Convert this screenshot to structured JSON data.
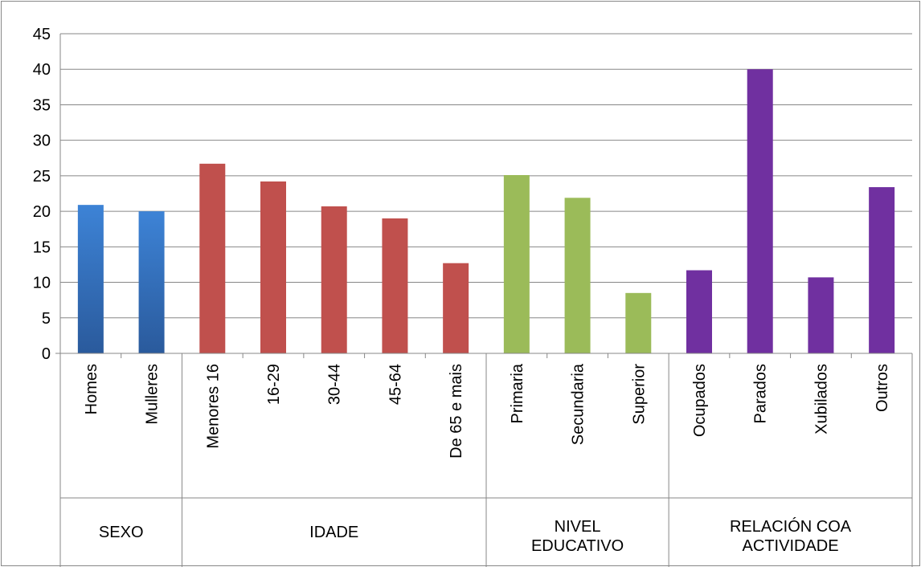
{
  "chart_data": {
    "type": "bar",
    "title": "",
    "xlabel": "",
    "ylabel": "",
    "ylim": [
      0,
      45
    ],
    "y_ticks": [
      "0",
      "5",
      "10",
      "15",
      "20",
      "25",
      "30",
      "35",
      "40",
      "45"
    ],
    "grid": true,
    "legend": "none",
    "groups": [
      {
        "label": "SEXO",
        "color": "#3a78c6",
        "categories": [
          "Homes",
          "Mulleres"
        ],
        "values": [
          20.9,
          20.0
        ]
      },
      {
        "label": "IDADE",
        "color": "#c0504d",
        "categories": [
          "Menores 16",
          "16-29",
          "30-44",
          "45-64",
          "De 65 e mais"
        ],
        "values": [
          26.7,
          24.2,
          20.7,
          19.0,
          12.7
        ]
      },
      {
        "label": "NIVEL EDUCATIVO",
        "label_lines": [
          "NIVEL",
          "EDUCATIVO"
        ],
        "color": "#9bbb59",
        "categories": [
          "Primaria",
          "Secundaria",
          "Superior"
        ],
        "values": [
          25.1,
          21.9,
          8.5
        ]
      },
      {
        "label": "RELACIÓN COA ACTIVIDADE",
        "label_lines": [
          "RELACIÓN COA",
          "ACTIVIDADE"
        ],
        "color": "#7030a0",
        "categories": [
          "Ocupados",
          "Parados",
          "Xubilados",
          "Outros"
        ],
        "values": [
          11.7,
          40.0,
          10.7,
          23.4
        ]
      }
    ]
  }
}
